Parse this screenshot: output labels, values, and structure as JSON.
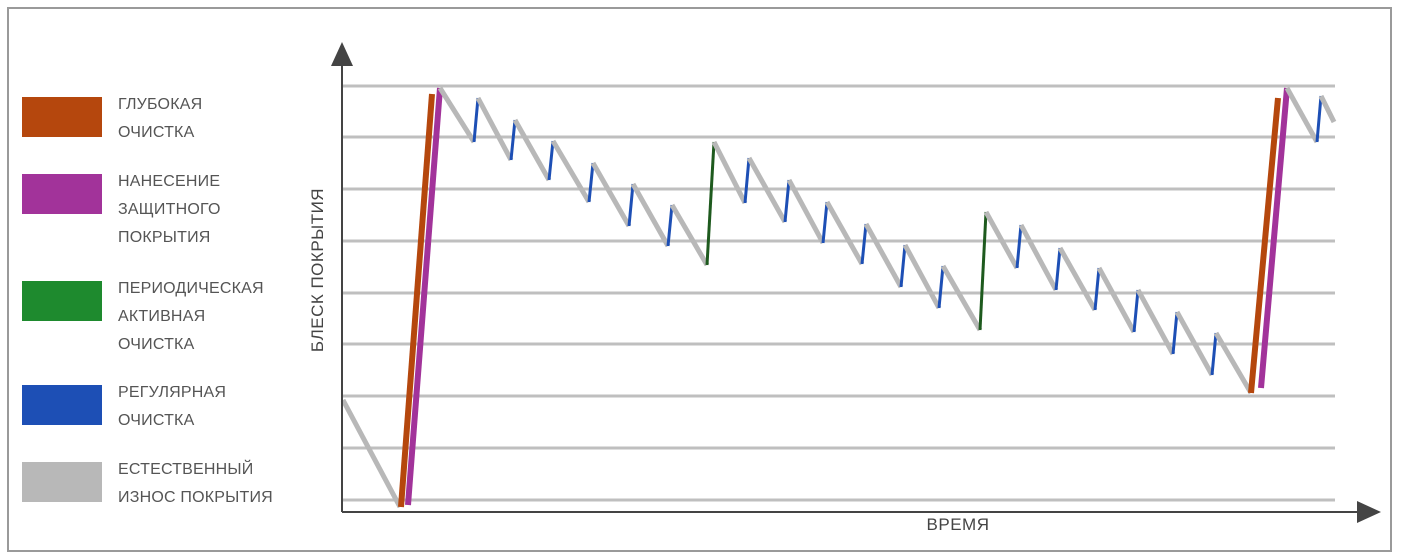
{
  "legend": [
    {
      "label": "ГЛУБОКАЯ\nОЧИСТКА",
      "color": "#b5470d"
    },
    {
      "label": "НАНЕСЕНИЕ\nЗАЩИТНОГО\nПОКРЫТИЯ",
      "color": "#a2339a"
    },
    {
      "label": "ПЕРИОДИЧЕСКАЯ\nАКТИВНАЯ\nОЧИСТКА",
      "color": "#1e8a2e"
    },
    {
      "label": "РЕГУЛЯРНАЯ\nОЧИСТКА",
      "color": "#1d4fb5"
    },
    {
      "label": "ЕСТЕСТВЕННЫЙ\nИЗНОС ПОКРЫТИЯ",
      "color": "#b8b8b8"
    }
  ],
  "axes": {
    "y_label": "БЛЕСК ПОКРЫТИЯ",
    "x_label": "ВРЕМЯ"
  },
  "colors": {
    "deep": "#b5470d",
    "coating": "#a2339a",
    "periodic": "#1e5a1e",
    "regular": "#1d4fb5",
    "wear": "#b8b8b8",
    "grid": "#bfbfbf",
    "axis": "#444444"
  }
}
